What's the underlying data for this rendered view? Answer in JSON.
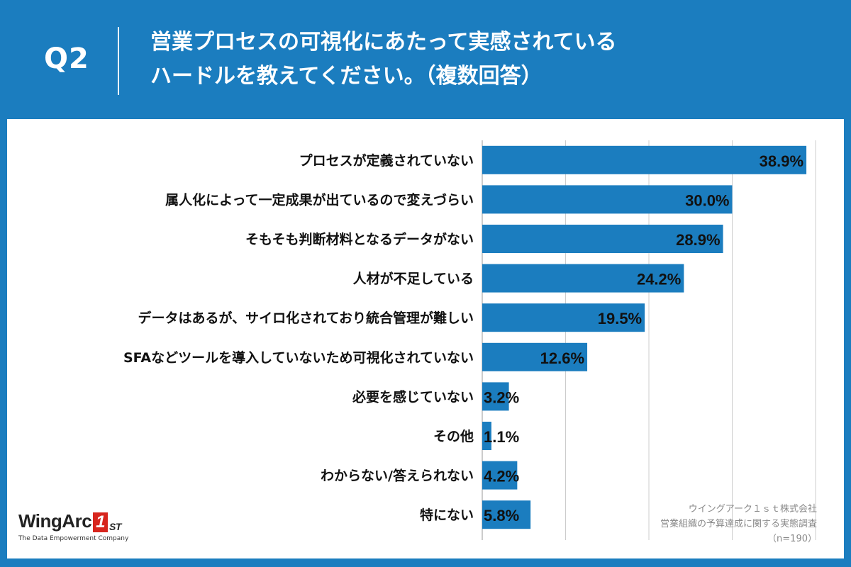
{
  "header": {
    "question_label": "Q2",
    "title_line1": "営業プロセスの可視化にあたって実感されている",
    "title_line2": "ハードルを教えてください。（複数回答）"
  },
  "chart_data": {
    "type": "bar",
    "orientation": "horizontal",
    "categories": [
      "プロセスが定義されていない",
      "属人化によって一定成果が出ているので変えづらい",
      "そもそも判断材料となるデータがない",
      "人材が不足している",
      "データはあるが、サイロ化されており統合管理が難しい",
      "SFAなどツールを導入していないため可視化されていない",
      "必要を感じていない",
      "その他",
      "わからない/答えられない",
      "特にない"
    ],
    "values": [
      38.9,
      30.0,
      28.9,
      24.2,
      19.5,
      12.6,
      3.2,
      1.1,
      4.2,
      5.8
    ],
    "value_labels": [
      "38.9%",
      "30.0%",
      "28.9%",
      "24.2%",
      "19.5%",
      "12.6%",
      "3.2%",
      "1.1%",
      "4.2%",
      "5.8%"
    ],
    "xlim": [
      0,
      40
    ],
    "grid": true,
    "bar_color": "#1b7dbf"
  },
  "source": {
    "company": "ウイングアーク１ｓｔ株式会社",
    "survey": "営業組織の予算達成に関する実態調査",
    "sample": "（n=190）"
  },
  "logo": {
    "name": "WingArc",
    "mark": "1",
    "suffix": "ST",
    "tagline": "The Data Empowerment Company"
  }
}
